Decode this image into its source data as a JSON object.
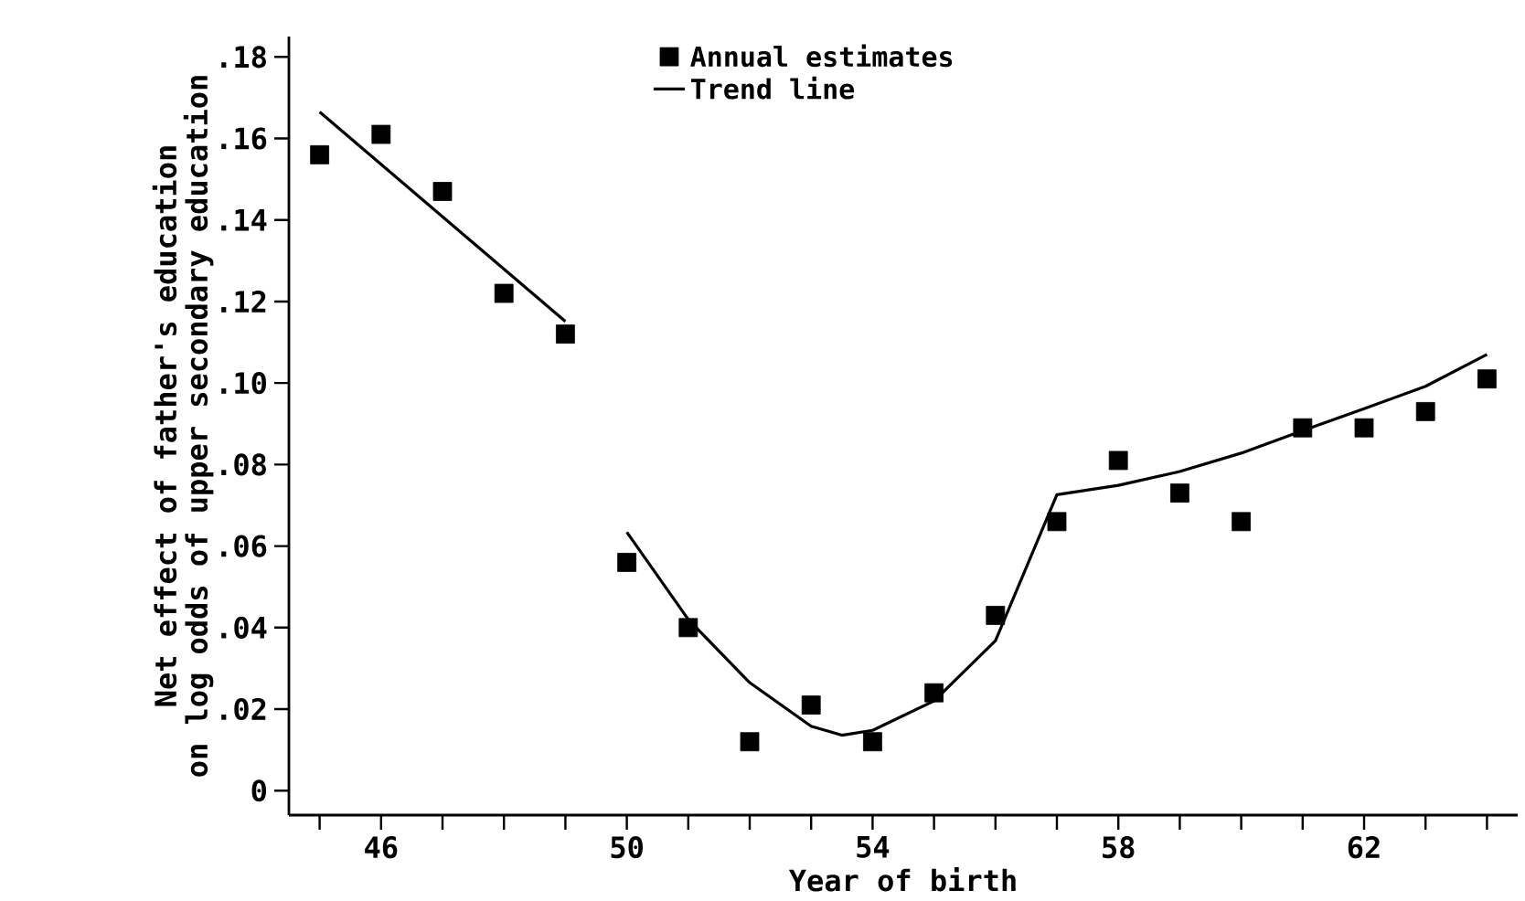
{
  "chart_data": {
    "type": "scatter",
    "xlabel": "Year of birth",
    "ylabel": "Net effect of father's education on log odds of upper secondary education",
    "x": [
      45,
      46,
      47,
      48,
      49,
      50,
      51,
      52,
      53,
      54,
      55,
      56,
      57,
      58,
      59,
      60,
      61,
      62,
      63,
      64
    ],
    "series": [
      {
        "name": "Annual estimates",
        "marker": "square",
        "color": "#000000",
        "values": [
          0.156,
          0.161,
          0.147,
          0.122,
          0.112,
          0.056,
          0.04,
          0.012,
          0.021,
          0.012,
          0.024,
          0.043,
          0.066,
          0.081,
          0.073,
          0.066,
          0.089,
          0.089,
          0.093,
          0.101
        ]
      },
      {
        "name": "Trend line",
        "type": "line",
        "marker": "none",
        "line_style": "solid",
        "color": "#000000",
        "x": [
          45,
          49,
          49.5,
          50,
          51,
          52,
          53,
          53.5,
          54,
          55,
          56,
          57,
          58,
          59,
          60,
          61,
          62,
          63,
          64
        ],
        "values": [
          0.1665,
          0.1151,
          null,
          0.0634,
          0.042,
          0.0265,
          0.0158,
          0.0136,
          0.0148,
          0.022,
          0.0368,
          0.0726,
          0.0749,
          0.0783,
          0.0828,
          0.0883,
          0.0937,
          0.0992,
          0.107
        ]
      }
    ],
    "xlim": [
      44.5,
      64.5
    ],
    "xticks": [
      {
        "value": 45,
        "label": null
      },
      46,
      {
        "value": 47,
        "label": null
      },
      {
        "value": 48,
        "label": null
      },
      {
        "value": 49,
        "label": null
      },
      50,
      {
        "value": 51,
        "label": null
      },
      {
        "value": 52,
        "label": null
      },
      {
        "value": 53,
        "label": null
      },
      54,
      {
        "value": 55,
        "label": null
      },
      {
        "value": 56,
        "label": null
      },
      {
        "value": 57,
        "label": null
      },
      58,
      {
        "value": 59,
        "label": null
      },
      {
        "value": 60,
        "label": null
      },
      {
        "value": 61,
        "label": null
      },
      62,
      {
        "value": 63,
        "label": null
      },
      {
        "value": 64,
        "label": null
      }
    ],
    "ylim": [
      -0.006,
      0.185
    ],
    "yticks": [
      0,
      {
        "value": 0.02,
        "label": ".02"
      },
      {
        "value": 0.04,
        "label": ".04"
      },
      {
        "value": 0.06,
        "label": ".06"
      },
      {
        "value": 0.08,
        "label": ".08"
      },
      {
        "value": 0.1,
        "label": ".10"
      },
      {
        "value": 0.12,
        "label": ".12"
      },
      {
        "value": 0.14,
        "label": ".14"
      },
      {
        "value": 0.16,
        "label": ".16"
      },
      {
        "value": 0.18,
        "label": ".18"
      }
    ],
    "grid": false,
    "legend": "top"
  }
}
